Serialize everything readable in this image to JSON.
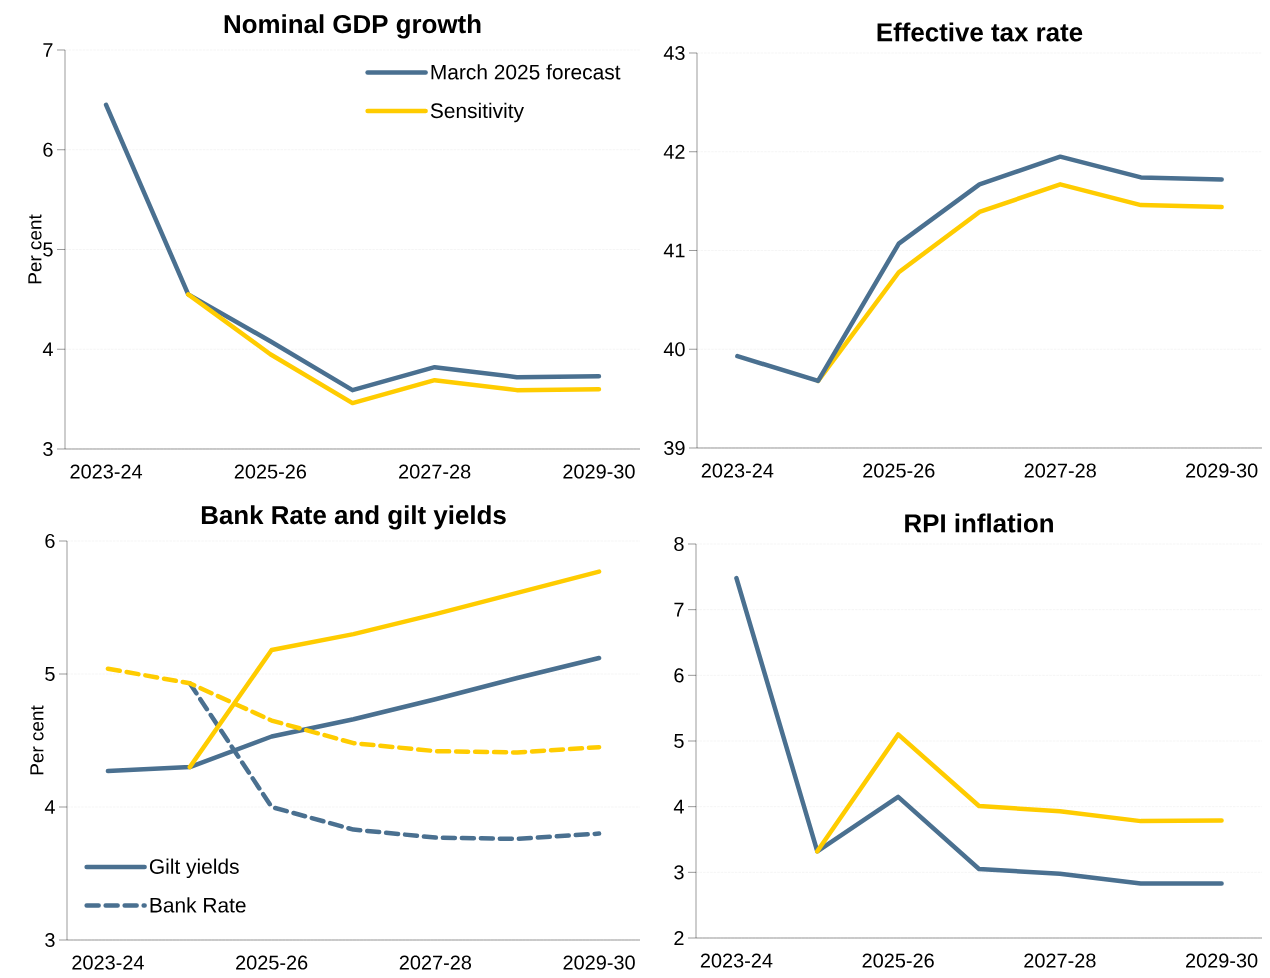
{
  "chart_data": [
    {
      "type": "line",
      "title": "Nominal GDP growth",
      "ylabel": "Per cent",
      "categories": [
        "2023-24",
        null,
        "2025-26",
        null,
        "2027-28",
        null,
        "2029-30"
      ],
      "ylim": [
        3,
        7
      ],
      "yticks": [
        3,
        4,
        5,
        6,
        7
      ],
      "grid": "y",
      "legend": "top right",
      "series": [
        {
          "name": "March 2025 forecast",
          "color": "#4a7090",
          "values": [
            6.45,
            4.55,
            4.08,
            3.59,
            3.82,
            3.72,
            3.73
          ]
        },
        {
          "name": "Sensitivity",
          "color": "#ffcc00",
          "values": [
            null,
            4.55,
            3.95,
            3.46,
            3.69,
            3.59,
            3.6
          ]
        }
      ]
    },
    {
      "type": "line",
      "title": "Effective tax rate",
      "categories": [
        "2023-24",
        null,
        "2025-26",
        null,
        "2027-28",
        null,
        "2029-30"
      ],
      "ylim": [
        39,
        43
      ],
      "yticks": [
        39,
        40,
        41,
        42,
        43
      ],
      "grid": "y",
      "series": [
        {
          "color": "#ffcc00",
          "values": [
            null,
            39.68,
            40.78,
            41.39,
            41.67,
            41.46,
            41.44
          ]
        },
        {
          "color": "#4a7090",
          "values": [
            39.93,
            39.68,
            41.07,
            41.67,
            41.95,
            41.74,
            41.72
          ]
        }
      ]
    },
    {
      "type": "line",
      "title": "Bank Rate and gilt yields",
      "ylabel": "Per cent",
      "categories": [
        "2023-24",
        null,
        "2025-26",
        null,
        "2027-28",
        null,
        "2029-30"
      ],
      "ylim": [
        3,
        6
      ],
      "yticks": [
        3,
        4,
        5,
        6
      ],
      "grid": "y",
      "legend": "bottom left",
      "series": [
        {
          "name": "Gilt yields",
          "color": "#4a7090",
          "line_style": "solid",
          "values": [
            4.27,
            4.3,
            4.53,
            4.66,
            4.81,
            4.97,
            5.12
          ]
        },
        {
          "name": "Bank Rate",
          "color": "#4a7090",
          "line_style": "dashed",
          "values": [
            null,
            4.93,
            4.0,
            3.83,
            3.77,
            3.76,
            3.8
          ]
        },
        {
          "color": "#ffcc00",
          "line_style": "solid",
          "values": [
            null,
            4.3,
            5.18,
            5.3,
            5.45,
            5.61,
            5.77
          ]
        },
        {
          "color": "#ffcc00",
          "line_style": "dashed",
          "values": [
            5.04,
            4.93,
            4.65,
            4.48,
            4.42,
            4.41,
            4.45
          ]
        }
      ]
    },
    {
      "type": "line",
      "title": "RPI inflation",
      "categories": [
        "2023-24",
        null,
        "2025-26",
        null,
        "2027-28",
        null,
        "2029-30"
      ],
      "ylim": [
        2,
        8
      ],
      "yticks": [
        2,
        3,
        4,
        5,
        6,
        7,
        8
      ],
      "grid": "y",
      "series": [
        {
          "color": "#4a7090",
          "values": [
            7.48,
            3.32,
            4.15,
            3.05,
            2.98,
            2.83,
            2.83
          ]
        },
        {
          "color": "#ffcc00",
          "values": [
            null,
            3.32,
            5.1,
            4.01,
            3.93,
            3.78,
            3.79
          ]
        }
      ]
    }
  ]
}
